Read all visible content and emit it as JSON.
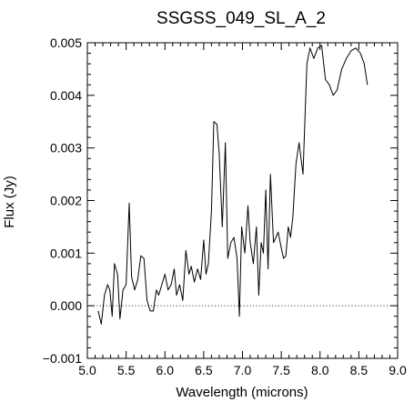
{
  "chart_data": {
    "type": "line",
    "title": "SSGSS_049_SL_A_2",
    "xlabel": "Wavelength (microns)",
    "ylabel": "Flux (Jy)",
    "xlim": [
      5.0,
      9.0
    ],
    "ylim": [
      -0.001,
      0.005
    ],
    "x_ticks": [
      "5.0",
      "5.5",
      "6.0",
      "6.5",
      "7.0",
      "7.5",
      "8.0",
      "8.5",
      "9.0"
    ],
    "y_ticks": [
      "-0.001",
      "0.000",
      "0.001",
      "0.002",
      "0.003",
      "0.004",
      "0.005"
    ],
    "reference_line": {
      "y": 0.0,
      "style": "dotted"
    },
    "grid": false,
    "series": [
      {
        "x": [
          5.14,
          5.18,
          5.22,
          5.26,
          5.29,
          5.32,
          5.35,
          5.39,
          5.42,
          5.46,
          5.5,
          5.54,
          5.57,
          5.61,
          5.65,
          5.69,
          5.73,
          5.77,
          5.81,
          5.85,
          5.89,
          5.92,
          5.96,
          6.0,
          6.04,
          6.08,
          6.12,
          6.15,
          6.19,
          6.23,
          6.27,
          6.31,
          6.34,
          6.38,
          6.42,
          6.46,
          6.5,
          6.53,
          6.56,
          6.6,
          6.63,
          6.67,
          6.7,
          6.74,
          6.78,
          6.81,
          6.85,
          6.89,
          6.93,
          6.96,
          6.99,
          7.03,
          7.07,
          7.1,
          7.14,
          7.18,
          7.21,
          7.24,
          7.27,
          7.3,
          7.33,
          7.36,
          7.4,
          7.43,
          7.46,
          7.5,
          7.53,
          7.56,
          7.59,
          7.62,
          7.65,
          7.69,
          7.73,
          7.78,
          7.83,
          7.87,
          7.92,
          7.97,
          8.02,
          8.07,
          8.12,
          8.17,
          8.22,
          8.28,
          8.34,
          8.4,
          8.46,
          8.52,
          8.57,
          8.61
        ],
        "y": [
          -0.0001,
          -0.00035,
          0.0002,
          0.0004,
          0.0003,
          -0.0002,
          0.0008,
          0.0006,
          -0.00025,
          0.0003,
          0.0004,
          0.00195,
          0.00055,
          0.0003,
          0.0005,
          0.00095,
          0.0009,
          0.0001,
          -0.0001,
          -0.0001,
          0.0003,
          0.0002,
          0.0004,
          0.0006,
          0.0003,
          0.0004,
          0.0007,
          0.0002,
          0.0004,
          0.0001,
          0.00105,
          0.0006,
          0.00075,
          0.00045,
          0.0007,
          0.0005,
          0.00125,
          0.0006,
          0.0008,
          0.0018,
          0.0035,
          0.00345,
          0.0029,
          0.0015,
          0.0031,
          0.0009,
          0.0012,
          0.0013,
          0.0009,
          -0.0002,
          0.0015,
          0.001,
          0.0019,
          0.0012,
          0.0008,
          0.0015,
          0.0002,
          0.0012,
          0.001,
          0.0022,
          0.0007,
          0.0025,
          0.0012,
          0.0013,
          0.0014,
          0.0011,
          0.0009,
          0.00095,
          0.0015,
          0.0013,
          0.0017,
          0.0027,
          0.0031,
          0.0025,
          0.0046,
          0.0049,
          0.0047,
          0.0049,
          0.00495,
          0.0043,
          0.0042,
          0.004,
          0.0041,
          0.0045,
          0.0047,
          0.00485,
          0.0049,
          0.0048,
          0.0046,
          0.0042
        ]
      }
    ]
  }
}
